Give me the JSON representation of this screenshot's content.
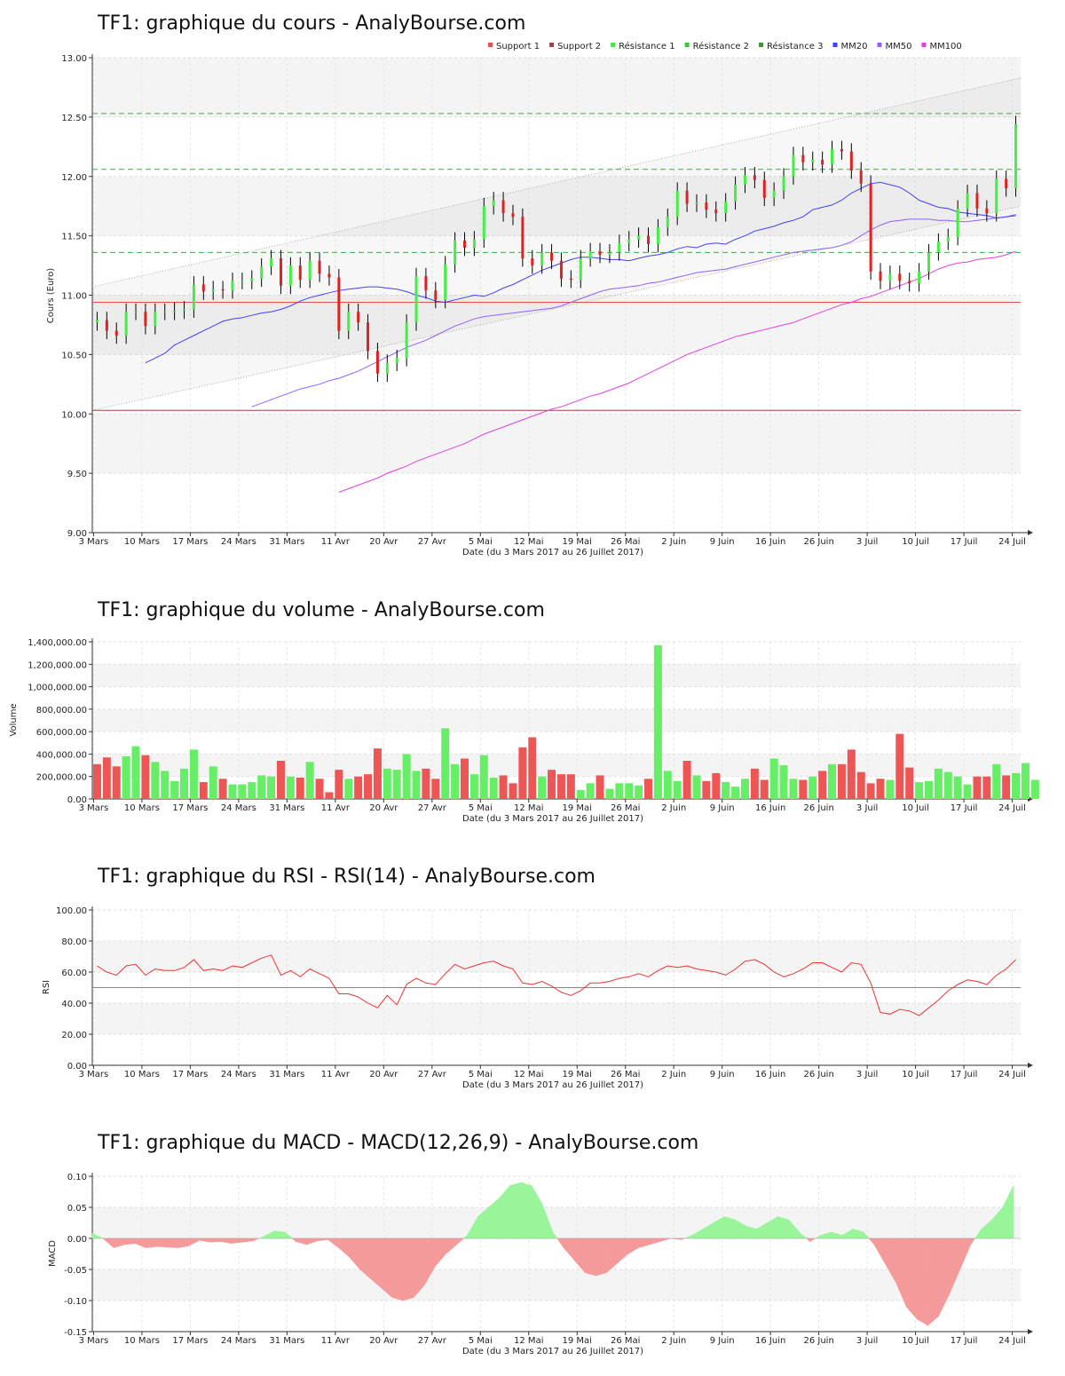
{
  "x_axis": {
    "label": "Date (du 3 Mars 2017 au 26 Juillet 2017)",
    "ticks": [
      "3 Mars",
      "10 Mars",
      "17 Mars",
      "24 Mars",
      "31 Mars",
      "11 Avr",
      "20 Avr",
      "27 Avr",
      "5 Mai",
      "12 Mai",
      "19 Mai",
      "26 Mai",
      "2 Juin",
      "9 Juin",
      "16 Juin",
      "26 Juin",
      "3 Juil",
      "10 Juil",
      "17 Juil",
      "24 Juil"
    ]
  },
  "legend": [
    {
      "label": "Support 1",
      "color": "#e05050"
    },
    {
      "label": "Support 2",
      "color": "#a04040"
    },
    {
      "label": "Résistance 1",
      "color": "#50e050"
    },
    {
      "label": "Résistance 2",
      "color": "#40c040"
    },
    {
      "label": "Résistance 3",
      "color": "#30a030"
    },
    {
      "label": "MM20",
      "color": "#4040ff"
    },
    {
      "label": "MM50",
      "color": "#9060ff"
    },
    {
      "label": "MM100",
      "color": "#e040e0"
    }
  ],
  "chart_data": [
    {
      "type": "candlestick",
      "title": "TF1: graphique du cours - AnalyBourse.com",
      "ylabel": "Cours (Euro)",
      "ylim": [
        9.0,
        13.0
      ],
      "yticks": [
        "9.00",
        "9.50",
        "10.00",
        "10.50",
        "11.00",
        "11.50",
        "12.00",
        "12.50",
        "13.00"
      ],
      "levels": {
        "support_1": 10.94,
        "support_2": 10.03,
        "resistance_1": 11.36,
        "resistance_2": 12.06,
        "resistance_3": 12.53
      },
      "channel": {
        "upper": [
          11.07,
          12.83
        ],
        "lower": [
          10.03,
          11.75
        ]
      },
      "closes": [
        10.79,
        10.7,
        10.66,
        10.86,
        10.86,
        10.74,
        10.86,
        10.86,
        10.87,
        10.88,
        11.09,
        11.03,
        11.05,
        11.04,
        11.12,
        11.12,
        11.14,
        11.24,
        11.31,
        11.08,
        11.25,
        11.13,
        11.29,
        11.18,
        11.15,
        10.7,
        10.86,
        10.77,
        10.53,
        10.34,
        10.43,
        10.47,
        10.77,
        11.16,
        11.04,
        10.96,
        11.26,
        11.46,
        11.4,
        11.47,
        11.75,
        11.8,
        11.69,
        11.66,
        11.31,
        11.25,
        11.36,
        11.29,
        11.14,
        11.13,
        11.31,
        11.37,
        11.34,
        11.36,
        11.44,
        11.47,
        11.5,
        11.43,
        11.57,
        11.66,
        11.88,
        11.77,
        11.78,
        11.72,
        11.69,
        11.79,
        11.93,
        12.01,
        11.97,
        11.82,
        11.88,
        12.0,
        12.18,
        12.12,
        12.14,
        12.1,
        12.23,
        12.21,
        12.05,
        11.94,
        11.2,
        11.12,
        11.18,
        11.12,
        11.1,
        11.2,
        11.36,
        11.45,
        11.49,
        11.73,
        11.86,
        11.73,
        11.69,
        11.98,
        11.9,
        12.44
      ],
      "ma20": [
        10.43,
        10.47,
        10.51,
        10.58,
        10.62,
        10.66,
        10.7,
        10.74,
        10.78,
        10.8,
        10.81,
        10.83,
        10.85,
        10.86,
        10.88,
        10.91,
        10.95,
        10.98,
        11.0,
        11.02,
        11.04,
        11.05,
        11.06,
        11.07,
        11.07,
        11.06,
        11.05,
        11.03,
        11.0,
        10.98,
        10.95,
        10.94,
        10.96,
        10.98,
        11.0,
        10.99,
        11.02,
        11.06,
        11.09,
        11.13,
        11.17,
        11.21,
        11.24,
        11.27,
        11.3,
        11.32,
        11.32,
        11.31,
        11.3,
        11.3,
        11.29,
        11.31,
        11.33,
        11.34,
        11.36,
        11.39,
        11.41,
        11.4,
        11.43,
        11.44,
        11.43,
        11.47,
        11.5,
        11.54,
        11.56,
        11.58,
        11.61,
        11.63,
        11.66,
        11.72,
        11.74,
        11.76,
        11.8,
        11.86,
        11.9,
        11.94,
        11.95,
        11.93,
        11.91,
        11.86,
        11.8,
        11.77,
        11.74,
        11.73,
        11.7,
        11.69,
        11.68,
        11.67,
        11.65,
        11.66,
        11.67
      ],
      "ma50": [
        10.06,
        10.09,
        10.12,
        10.15,
        10.18,
        10.21,
        10.23,
        10.25,
        10.28,
        10.3,
        10.33,
        10.36,
        10.4,
        10.44,
        10.48,
        10.52,
        10.56,
        10.59,
        10.62,
        10.66,
        10.7,
        10.74,
        10.77,
        10.8,
        10.82,
        10.83,
        10.84,
        10.85,
        10.86,
        10.87,
        10.88,
        10.89,
        10.91,
        10.94,
        10.97,
        11.0,
        11.03,
        11.05,
        11.06,
        11.07,
        11.08,
        11.1,
        11.11,
        11.13,
        11.15,
        11.17,
        11.19,
        11.2,
        11.21,
        11.22,
        11.24,
        11.26,
        11.28,
        11.3,
        11.32,
        11.34,
        11.36,
        11.37,
        11.38,
        11.39,
        11.4,
        11.42,
        11.45,
        11.5,
        11.55,
        11.59,
        11.62,
        11.63,
        11.64,
        11.64,
        11.64,
        11.63,
        11.63,
        11.62,
        11.62,
        11.63,
        11.64,
        11.65,
        11.66,
        11.68
      ],
      "ma100": [
        9.34,
        9.37,
        9.4,
        9.43,
        9.46,
        9.5,
        9.53,
        9.56,
        9.6,
        9.63,
        9.66,
        9.69,
        9.72,
        9.75,
        9.79,
        9.83,
        9.86,
        9.89,
        9.92,
        9.95,
        9.98,
        10.01,
        10.04,
        10.06,
        10.09,
        10.12,
        10.15,
        10.17,
        10.2,
        10.23,
        10.26,
        10.3,
        10.34,
        10.38,
        10.42,
        10.46,
        10.5,
        10.53,
        10.56,
        10.59,
        10.62,
        10.65,
        10.67,
        10.69,
        10.71,
        10.73,
        10.75,
        10.77,
        10.8,
        10.83,
        10.86,
        10.89,
        10.92,
        10.94,
        10.97,
        10.99,
        11.02,
        11.05,
        11.08,
        11.11,
        11.14,
        11.18,
        11.22,
        11.25,
        11.27,
        11.28,
        11.3,
        11.31,
        11.32,
        11.34,
        11.37
      ]
    },
    {
      "type": "bar",
      "title": "TF1: graphique du volume - AnalyBourse.com",
      "ylabel": "Volume",
      "ylim": [
        0,
        1400000
      ],
      "yticks": [
        "0.00",
        "200,000.00",
        "400,000.00",
        "600,000.00",
        "800,000.00",
        "1,000,000.00",
        "1,200,000.00",
        "1,400,000.00"
      ],
      "values": [
        310000,
        370000,
        290000,
        380000,
        470000,
        390000,
        330000,
        250000,
        160000,
        270000,
        440000,
        150000,
        290000,
        180000,
        130000,
        130000,
        150000,
        210000,
        200000,
        340000,
        200000,
        190000,
        330000,
        180000,
        60000,
        260000,
        180000,
        200000,
        220000,
        450000,
        270000,
        260000,
        400000,
        250000,
        270000,
        180000,
        630000,
        310000,
        360000,
        220000,
        390000,
        190000,
        210000,
        140000,
        460000,
        550000,
        200000,
        260000,
        220000,
        220000,
        80000,
        140000,
        210000,
        90000,
        140000,
        140000,
        120000,
        180000,
        1370000,
        250000,
        160000,
        340000,
        210000,
        160000,
        230000,
        150000,
        110000,
        180000,
        270000,
        170000,
        360000,
        300000,
        180000,
        170000,
        200000,
        250000,
        310000,
        310000,
        440000,
        240000,
        140000,
        180000,
        170000,
        580000,
        280000,
        150000,
        160000,
        270000,
        240000,
        200000,
        130000,
        200000,
        200000,
        310000,
        210000,
        230000,
        320000,
        170000
      ]
    },
    {
      "type": "line",
      "title": "TF1: graphique du RSI - RSI(14) - AnalyBourse.com",
      "ylabel": "RSI",
      "ylim": [
        0,
        100
      ],
      "yticks": [
        "0.00",
        "20.00",
        "40.00",
        "60.00",
        "80.00",
        "100.00"
      ],
      "reference": 50,
      "values": [
        64,
        60,
        58,
        64,
        65,
        58,
        62,
        61,
        61,
        63,
        68,
        61,
        62,
        61,
        64,
        63,
        66,
        69,
        71,
        58,
        61,
        57,
        62,
        59,
        56,
        46,
        46,
        44,
        40,
        37,
        45,
        39,
        52,
        56,
        53,
        52,
        59,
        65,
        62,
        64,
        66,
        67,
        64,
        62,
        53,
        52,
        54,
        51,
        47,
        45,
        48,
        53,
        53,
        54,
        56,
        57,
        59,
        57,
        61,
        64,
        63,
        64,
        62,
        61,
        60,
        58,
        62,
        67,
        68,
        65,
        60,
        57,
        59,
        62,
        66,
        66,
        63,
        60,
        66,
        65,
        53,
        34,
        33,
        36,
        35,
        32,
        37,
        42,
        48,
        52,
        55,
        54,
        52,
        58,
        62,
        68
      ]
    },
    {
      "type": "area",
      "title": "TF1: graphique du MACD - MACD(12,26,9) - AnalyBourse.com",
      "ylabel": "MACD",
      "ylim": [
        -0.15,
        0.1
      ],
      "yticks": [
        "-0.15",
        "-0.10",
        "-0.05",
        "0.00",
        "0.05",
        "0.10"
      ],
      "values": [
        0.008,
        0.0,
        -0.015,
        -0.01,
        -0.008,
        -0.015,
        -0.013,
        -0.014,
        -0.015,
        -0.012,
        -0.003,
        -0.006,
        -0.005,
        -0.008,
        -0.006,
        -0.004,
        0.003,
        0.012,
        0.01,
        -0.005,
        -0.01,
        -0.004,
        -0.002,
        -0.015,
        -0.03,
        -0.05,
        -0.065,
        -0.08,
        -0.095,
        -0.1,
        -0.095,
        -0.075,
        -0.045,
        -0.025,
        -0.01,
        0.005,
        0.035,
        0.05,
        0.065,
        0.085,
        0.09,
        0.085,
        0.055,
        0.01,
        -0.015,
        -0.035,
        -0.055,
        -0.06,
        -0.055,
        -0.04,
        -0.025,
        -0.015,
        -0.01,
        -0.005,
        0.0,
        -0.002,
        0.005,
        0.015,
        0.025,
        0.035,
        0.03,
        0.02,
        0.015,
        0.025,
        0.035,
        0.03,
        0.01,
        -0.005,
        0.005,
        0.01,
        0.005,
        0.015,
        0.01,
        -0.01,
        -0.04,
        -0.07,
        -0.11,
        -0.13,
        -0.14,
        -0.125,
        -0.09,
        -0.05,
        -0.01,
        0.015,
        0.03,
        0.05,
        0.085
      ]
    }
  ]
}
